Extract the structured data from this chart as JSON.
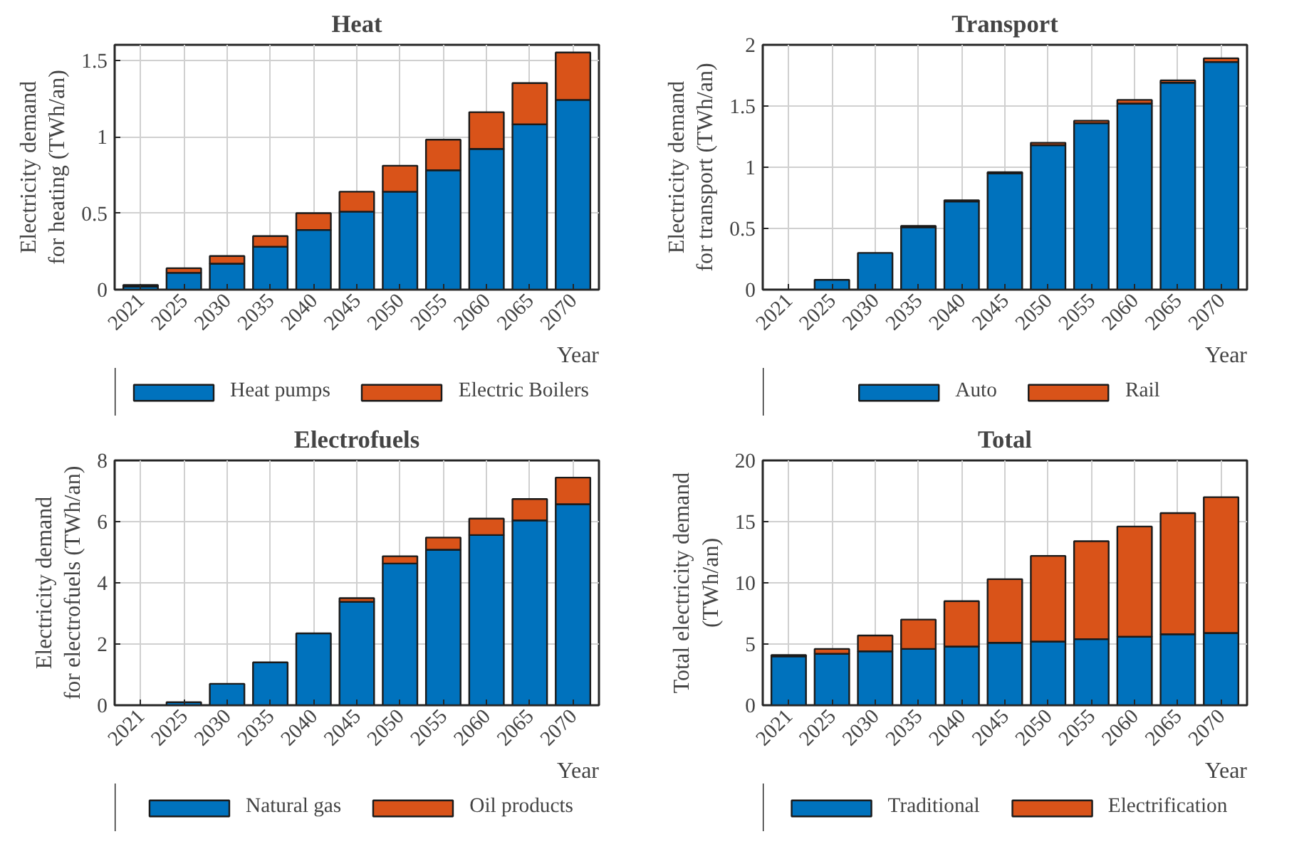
{
  "chart_data": [
    {
      "type": "bar",
      "title": "Heat",
      "xlabel": "Year",
      "ylabel": "Electricity demand\nfor heating (TWh/an)",
      "categories": [
        "2021",
        "2025",
        "2030",
        "2035",
        "2040",
        "2045",
        "2050",
        "2055",
        "2060",
        "2065",
        "2070"
      ],
      "stacked": true,
      "ylim": [
        0,
        1.6
      ],
      "yticks": [
        0,
        0.5,
        1,
        1.5
      ],
      "grid": true,
      "legend": "bottom",
      "series": [
        {
          "name": "Heat pumps",
          "color": "#0072bd",
          "values": [
            0.02,
            0.11,
            0.17,
            0.28,
            0.39,
            0.51,
            0.64,
            0.78,
            0.92,
            1.08,
            1.24
          ]
        },
        {
          "name": "Electric Boilers",
          "color": "#d95319",
          "values": [
            0.01,
            0.03,
            0.05,
            0.07,
            0.11,
            0.13,
            0.17,
            0.2,
            0.24,
            0.27,
            0.31
          ]
        }
      ]
    },
    {
      "type": "bar",
      "title": "Transport",
      "xlabel": "Year",
      "ylabel": "Electricity demand\nfor transport (TWh/an)",
      "categories": [
        "2021",
        "2025",
        "2030",
        "2035",
        "2040",
        "2045",
        "2050",
        "2055",
        "2060",
        "2065",
        "2070"
      ],
      "stacked": true,
      "ylim": [
        0,
        2
      ],
      "yticks": [
        0,
        0.5,
        1,
        1.5,
        2
      ],
      "grid": true,
      "legend": "bottom",
      "series": [
        {
          "name": "Auto",
          "color": "#0072bd",
          "values": [
            0,
            0.08,
            0.3,
            0.51,
            0.72,
            0.95,
            1.18,
            1.36,
            1.52,
            1.69,
            1.86
          ]
        },
        {
          "name": "Rail",
          "color": "#d95319",
          "values": [
            0,
            0,
            0,
            0.01,
            0.01,
            0.01,
            0.02,
            0.02,
            0.03,
            0.02,
            0.03
          ]
        }
      ]
    },
    {
      "type": "bar",
      "title": "Electrofuels",
      "xlabel": "Year",
      "ylabel": "Electricity demand\nfor electrofuels (TWh/an)",
      "categories": [
        "2021",
        "2025",
        "2030",
        "2035",
        "2040",
        "2045",
        "2050",
        "2055",
        "2060",
        "2065",
        "2070"
      ],
      "stacked": true,
      "ylim": [
        0,
        8
      ],
      "yticks": [
        0,
        2,
        4,
        6,
        8
      ],
      "grid": true,
      "legend": "bottom",
      "series": [
        {
          "name": "Natural gas",
          "color": "#0072bd",
          "values": [
            0,
            0.1,
            0.7,
            1.4,
            2.35,
            3.38,
            4.63,
            5.08,
            5.56,
            6.04,
            6.57
          ]
        },
        {
          "name": "Oil products",
          "color": "#d95319",
          "values": [
            0,
            0,
            0,
            0,
            0,
            0.12,
            0.24,
            0.4,
            0.54,
            0.7,
            0.87
          ]
        }
      ]
    },
    {
      "type": "bar",
      "title": "Total",
      "xlabel": "Year",
      "ylabel": "Total electricity demand\n(TWh/an)",
      "categories": [
        "2021",
        "2025",
        "2030",
        "2035",
        "2040",
        "2045",
        "2050",
        "2055",
        "2060",
        "2065",
        "2070"
      ],
      "stacked": true,
      "ylim": [
        0,
        20
      ],
      "yticks": [
        0,
        5,
        10,
        15,
        20
      ],
      "grid": true,
      "legend": "bottom",
      "series": [
        {
          "name": "Traditional",
          "color": "#0072bd",
          "values": [
            4.0,
            4.2,
            4.4,
            4.6,
            4.8,
            5.1,
            5.2,
            5.4,
            5.6,
            5.8,
            5.9
          ]
        },
        {
          "name": "Electrification",
          "color": "#d95319",
          "values": [
            0.1,
            0.4,
            1.3,
            2.4,
            3.7,
            5.2,
            7.0,
            8.0,
            9.0,
            9.9,
            11.1
          ]
        }
      ]
    }
  ]
}
